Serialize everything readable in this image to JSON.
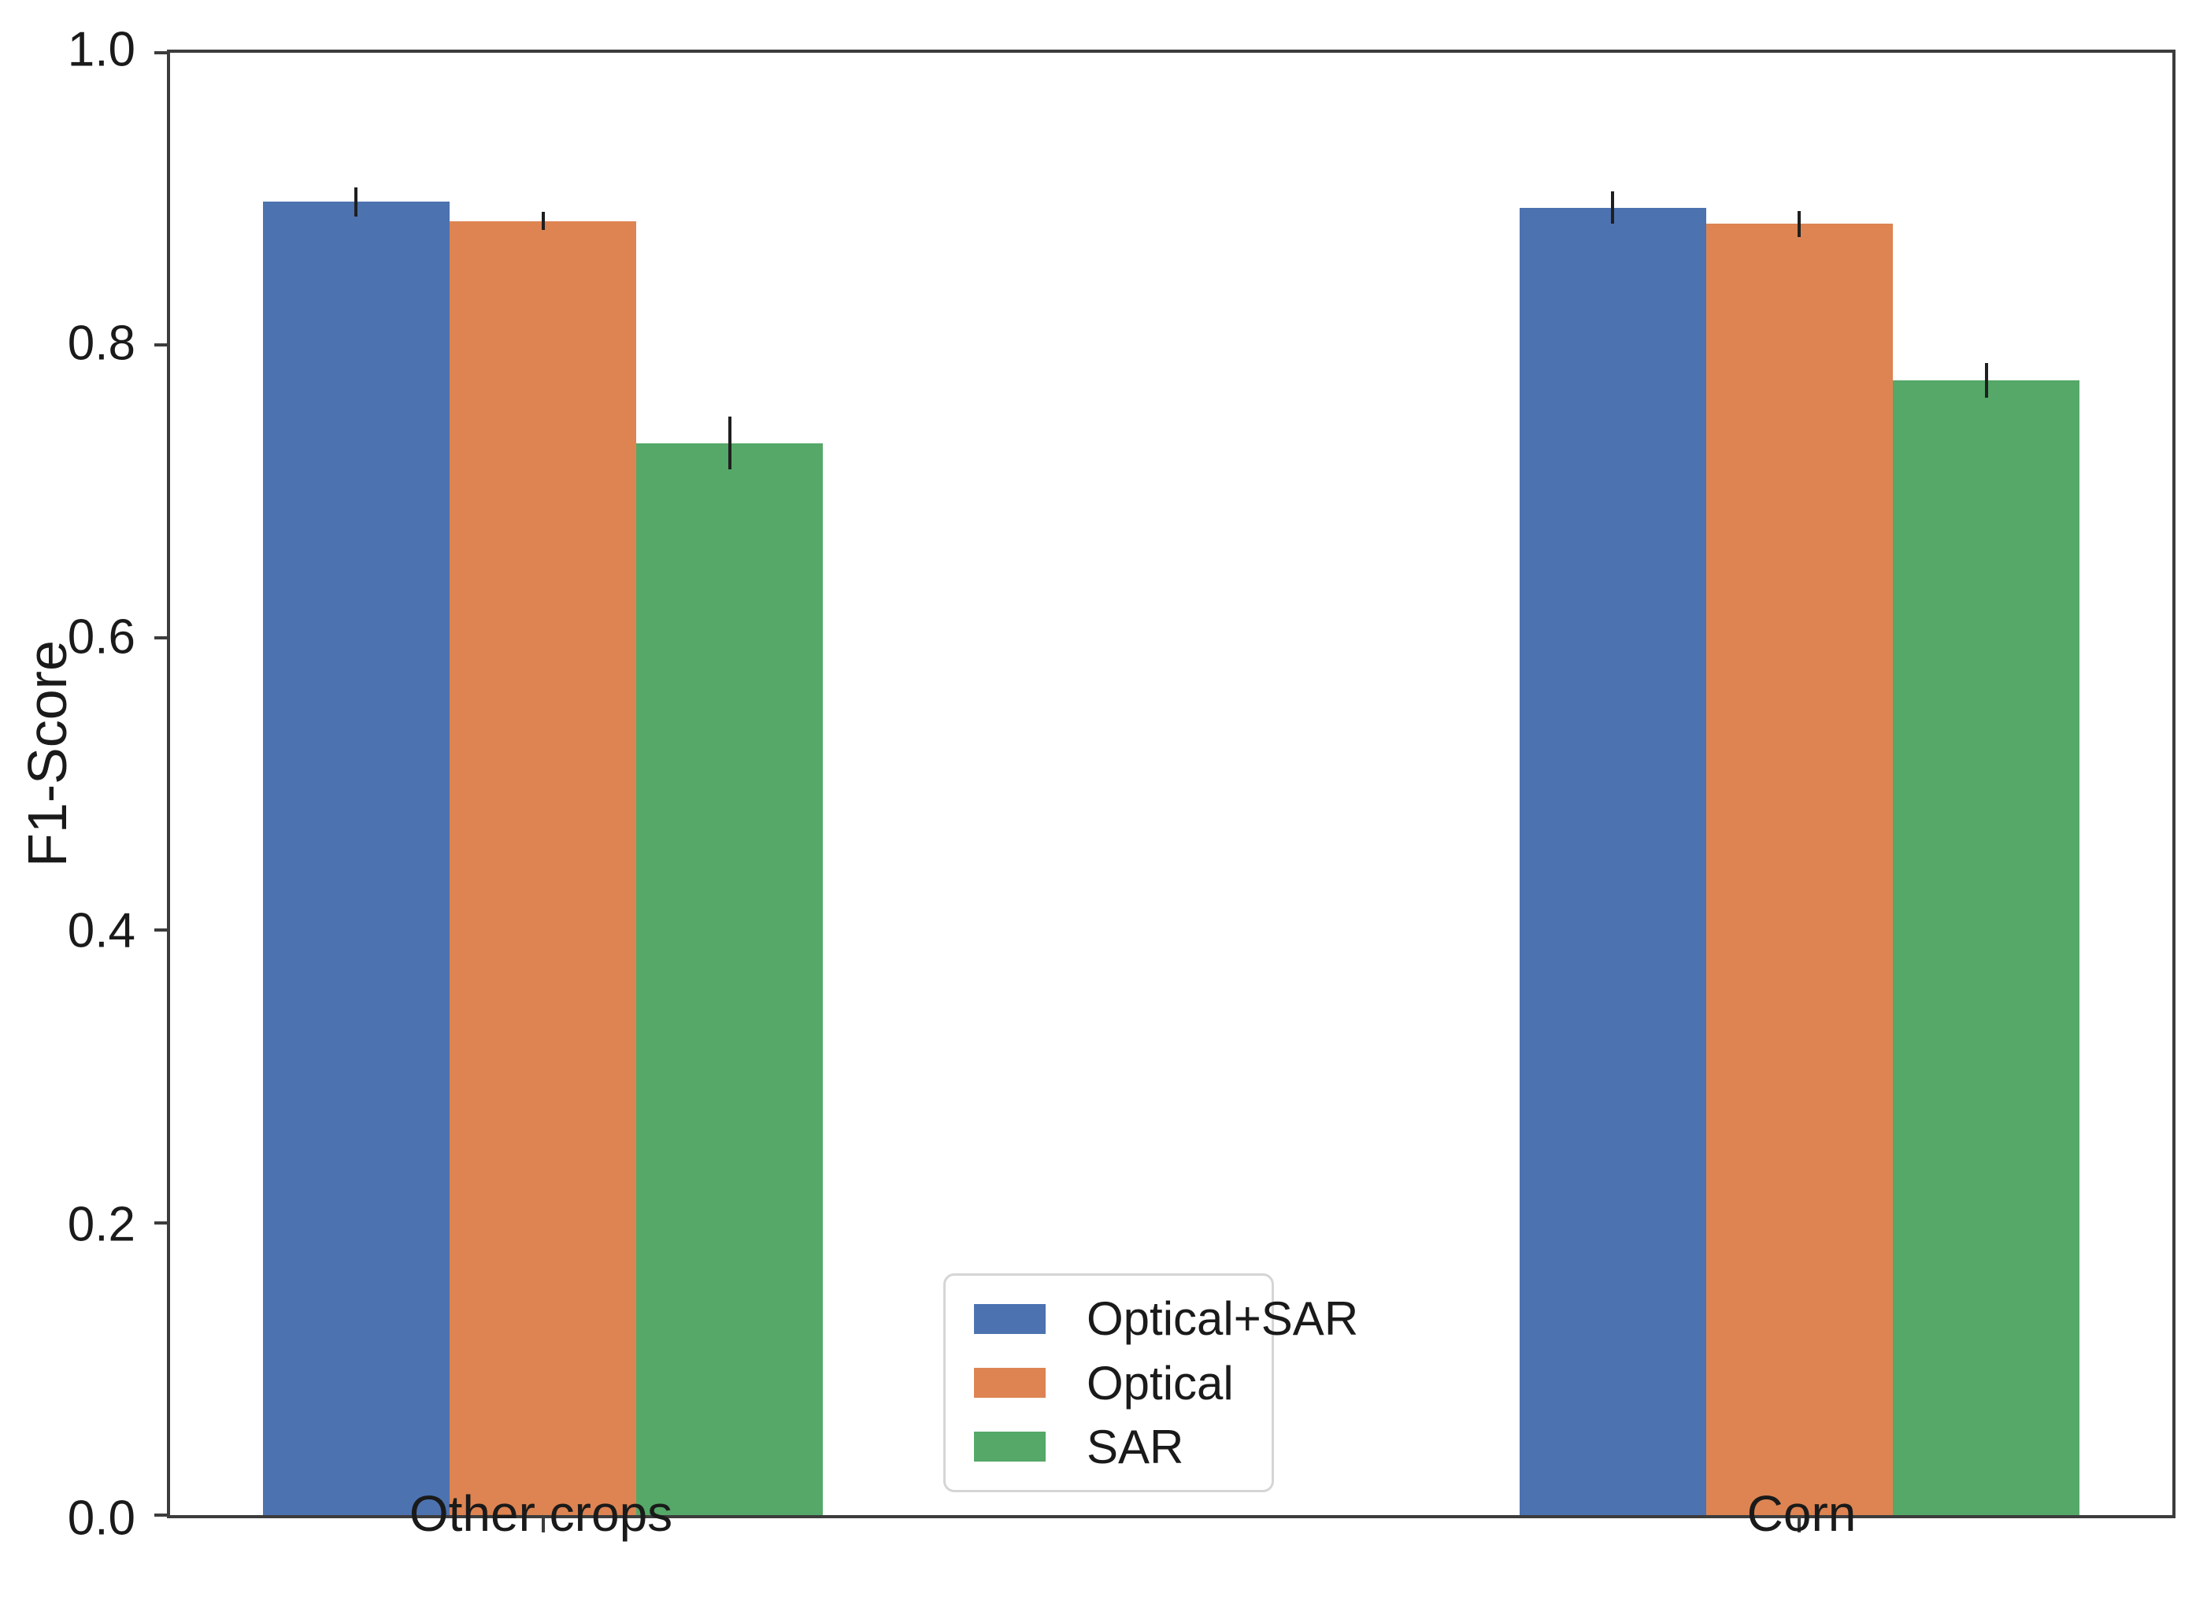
{
  "chart_data": {
    "type": "bar",
    "title": "",
    "xlabel": "",
    "ylabel": "F1-Score",
    "categories": [
      "Other crops",
      "Corn"
    ],
    "series": [
      {
        "name": "Optical+SAR",
        "color": "#4C72B0",
        "values": [
          0.898,
          0.894
        ],
        "errors": [
          0.01,
          0.011
        ]
      },
      {
        "name": "Optical",
        "color": "#DD8452",
        "values": [
          0.885,
          0.883
        ],
        "errors": [
          0.006,
          0.009
        ]
      },
      {
        "name": "SAR",
        "color": "#55A868",
        "values": [
          0.733,
          0.776
        ],
        "errors": [
          0.018,
          0.012
        ]
      }
    ],
    "ylim": [
      0.0,
      1.0
    ],
    "yticks": [
      "0.0",
      "0.2",
      "0.4",
      "0.6",
      "0.8",
      "1.0"
    ],
    "grid": false,
    "error_bars": true,
    "legend_position": "lower center, inside plot",
    "colors": {
      "spine": "#3c3c3c",
      "error_bar": "#1f1f1f",
      "text": "#1a1a1a",
      "legend_border": "#d5d5d5",
      "background": "#ffffff"
    }
  }
}
